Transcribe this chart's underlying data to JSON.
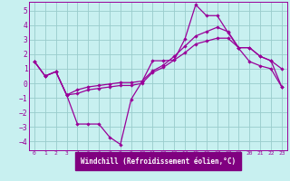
{
  "xlabel": "Windchill (Refroidissement éolien,°C)",
  "bg_color": "#c8f0f0",
  "xlabel_bg": "#800080",
  "line_color": "#990099",
  "grid_color": "#99cccc",
  "xlim": [
    -0.5,
    23.5
  ],
  "ylim": [
    -4.6,
    5.6
  ],
  "yticks": [
    -4,
    -3,
    -2,
    -1,
    0,
    1,
    2,
    3,
    4,
    5
  ],
  "xticks": [
    0,
    1,
    2,
    3,
    4,
    5,
    6,
    7,
    8,
    9,
    10,
    11,
    12,
    13,
    14,
    15,
    16,
    17,
    18,
    19,
    20,
    21,
    22,
    23
  ],
  "line1_x": [
    0,
    1,
    2,
    3,
    4,
    5,
    6,
    7,
    8,
    9,
    10,
    11,
    12,
    13,
    14,
    15,
    16,
    17,
    18,
    19,
    20,
    21,
    22,
    23
  ],
  "line1_y": [
    1.5,
    0.5,
    0.8,
    -0.8,
    -2.8,
    -2.8,
    -2.8,
    -3.7,
    -4.2,
    -1.1,
    0.1,
    1.55,
    1.55,
    1.6,
    3.05,
    5.4,
    4.65,
    4.65,
    3.5,
    2.4,
    1.5,
    1.2,
    1.0,
    -0.25
  ],
  "line2_x": [
    0,
    1,
    2,
    3,
    4,
    5,
    6,
    7,
    8,
    9,
    10,
    11,
    12,
    13,
    14,
    15,
    16,
    17,
    18,
    19,
    20,
    21,
    22,
    23
  ],
  "line2_y": [
    1.5,
    0.5,
    0.8,
    -0.8,
    -0.7,
    -0.45,
    -0.35,
    -0.25,
    -0.15,
    -0.15,
    0.0,
    0.75,
    1.1,
    1.6,
    2.1,
    2.7,
    2.9,
    3.1,
    3.1,
    2.45,
    2.45,
    1.85,
    1.55,
    1.0
  ],
  "line3_x": [
    0,
    1,
    2,
    3,
    4,
    5,
    6,
    7,
    8,
    9,
    10,
    11,
    12,
    13,
    14,
    15,
    16,
    17,
    18,
    19,
    20,
    21,
    22,
    23
  ],
  "line3_y": [
    1.5,
    0.5,
    0.8,
    -0.8,
    -0.45,
    -0.25,
    -0.15,
    -0.05,
    0.05,
    0.05,
    0.15,
    0.85,
    1.25,
    1.85,
    2.55,
    3.25,
    3.55,
    3.85,
    3.55,
    2.45,
    2.45,
    1.85,
    1.55,
    -0.25
  ]
}
